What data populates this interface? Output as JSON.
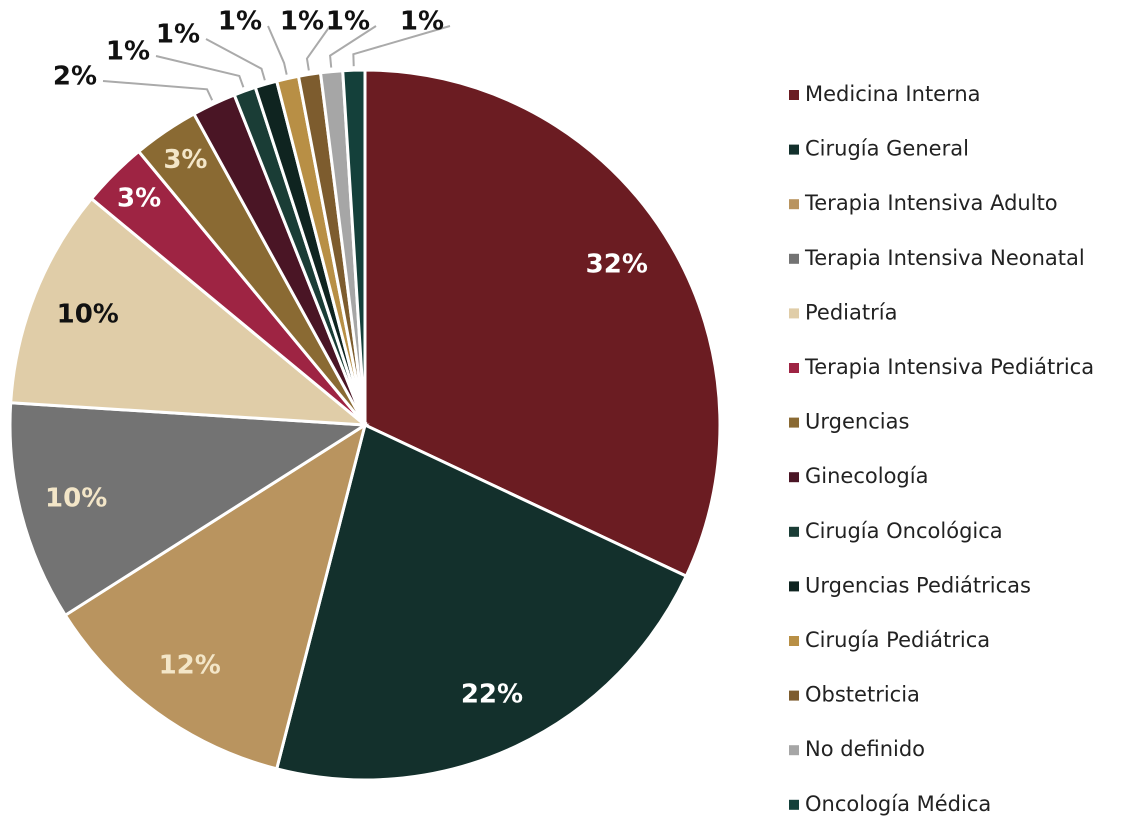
{
  "chart_data": {
    "type": "pie",
    "categories": [
      "Medicina Interna",
      "Cirugía General",
      "Terapia Intensiva Adulto",
      "Terapia Intensiva Neonatal",
      "Pediatría",
      "Terapia Intensiva Pediátrica",
      "Urgencias",
      "Ginecología",
      "Cirugía Oncológica",
      "Urgencias Pediátricas",
      "Cirugía Pediátrica",
      "Obstetricia",
      "No definido",
      "Oncología Médica"
    ],
    "values": [
      32,
      22,
      12,
      10,
      10,
      3,
      3,
      2,
      1,
      1,
      1,
      1,
      1,
      1
    ],
    "value_labels": [
      "32%",
      "22%",
      "12%",
      "10%",
      "10%",
      "3%",
      "3%",
      "2%",
      "1%",
      "1%",
      "1%",
      "1%",
      "1%",
      "1%"
    ],
    "colors": [
      "#6b1c22",
      "#13302c",
      "#b9945f",
      "#737373",
      "#e0cda8",
      "#9e2443",
      "#8a6a33",
      "#4a1525",
      "#1a3d36",
      "#0f2420",
      "#b88f45",
      "#7d5c2e",
      "#a6a6a6",
      "#14403a"
    ],
    "legend": "right"
  }
}
